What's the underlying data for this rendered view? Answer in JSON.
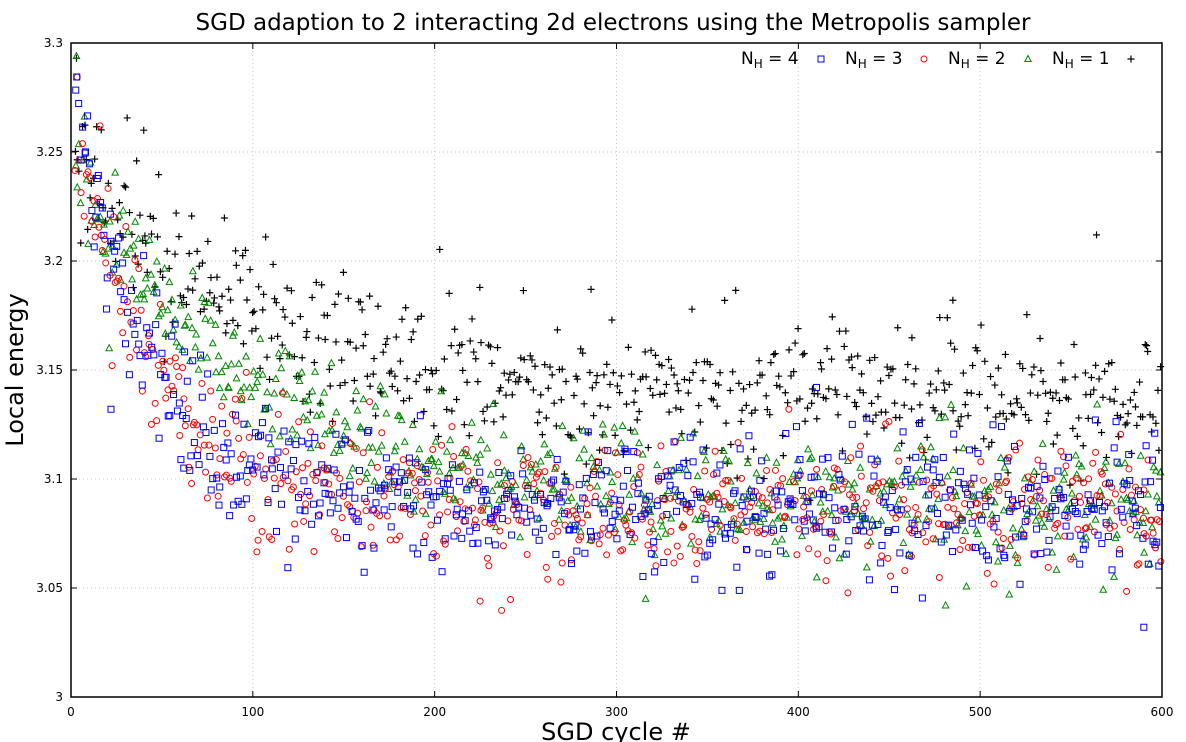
{
  "chart_data": {
    "type": "scatter",
    "title": "SGD adaption to 2 interacting 2d electrons using the Metropolis sampler",
    "xlabel": "SGD cycle #",
    "ylabel": "Local energy",
    "xlim": [
      0,
      600
    ],
    "ylim": [
      3.0,
      3.3
    ],
    "xticks": [
      "0",
      "100",
      "200",
      "300",
      "400",
      "500",
      "600"
    ],
    "yticks": [
      "3",
      "3.05",
      "3.1",
      "3.15",
      "3.2",
      "3.25",
      "3.3"
    ],
    "grid": true,
    "legend_position": "top-right",
    "series": [
      {
        "name": "N_H = 4",
        "legend": {
          "main": "N",
          "sub": "H",
          "rest": " = 4"
        },
        "marker": "square",
        "color": "#0000ff",
        "curve": {
          "a": 3.088,
          "b": 0.19,
          "tau": 42
        },
        "noise": 0.016,
        "seed": 4,
        "outliers": [
          [
            22,
            3.132
          ],
          [
            62,
            3.105
          ],
          [
            410,
            3.142
          ],
          [
            590,
            3.032
          ],
          [
            596,
            3.121
          ]
        ]
      },
      {
        "name": "N_H = 3",
        "legend": {
          "main": "N",
          "sub": "H",
          "rest": " = 3"
        },
        "marker": "circle",
        "color": "#ff0000",
        "curve": {
          "a": 3.085,
          "b": 0.185,
          "tau": 45
        },
        "noise": 0.015,
        "seed": 3,
        "outliers": [
          [
            16,
            3.262
          ],
          [
            225,
            3.044
          ],
          [
            590,
            3.095
          ]
        ]
      },
      {
        "name": "N_H = 2",
        "legend": {
          "main": "N",
          "sub": "H",
          "rest": " = 2"
        },
        "marker": "triangle",
        "color": "#008800",
        "curve": {
          "a": 3.088,
          "b": 0.16,
          "tau": 95
        },
        "noise": 0.014,
        "seed": 2,
        "outliers": [
          [
            3,
            3.294
          ],
          [
            21,
            3.16
          ],
          [
            316,
            3.045
          ],
          [
            481,
            3.042
          ],
          [
            516,
            3.047
          ]
        ]
      },
      {
        "name": "N_H = 1",
        "legend": {
          "main": "N",
          "sub": "H",
          "rest": " = 1"
        },
        "marker": "plus",
        "color": "#000000",
        "curve": {
          "a": 3.138,
          "b": 0.115,
          "tau": 90
        },
        "noise": 0.016,
        "seed": 1,
        "outliers": [
          [
            3,
            3.293
          ],
          [
            40,
            3.26
          ],
          [
            564,
            3.212
          ],
          [
            485,
            3.182
          ],
          [
            286,
            3.187
          ]
        ]
      }
    ],
    "points_per_series": 600
  }
}
